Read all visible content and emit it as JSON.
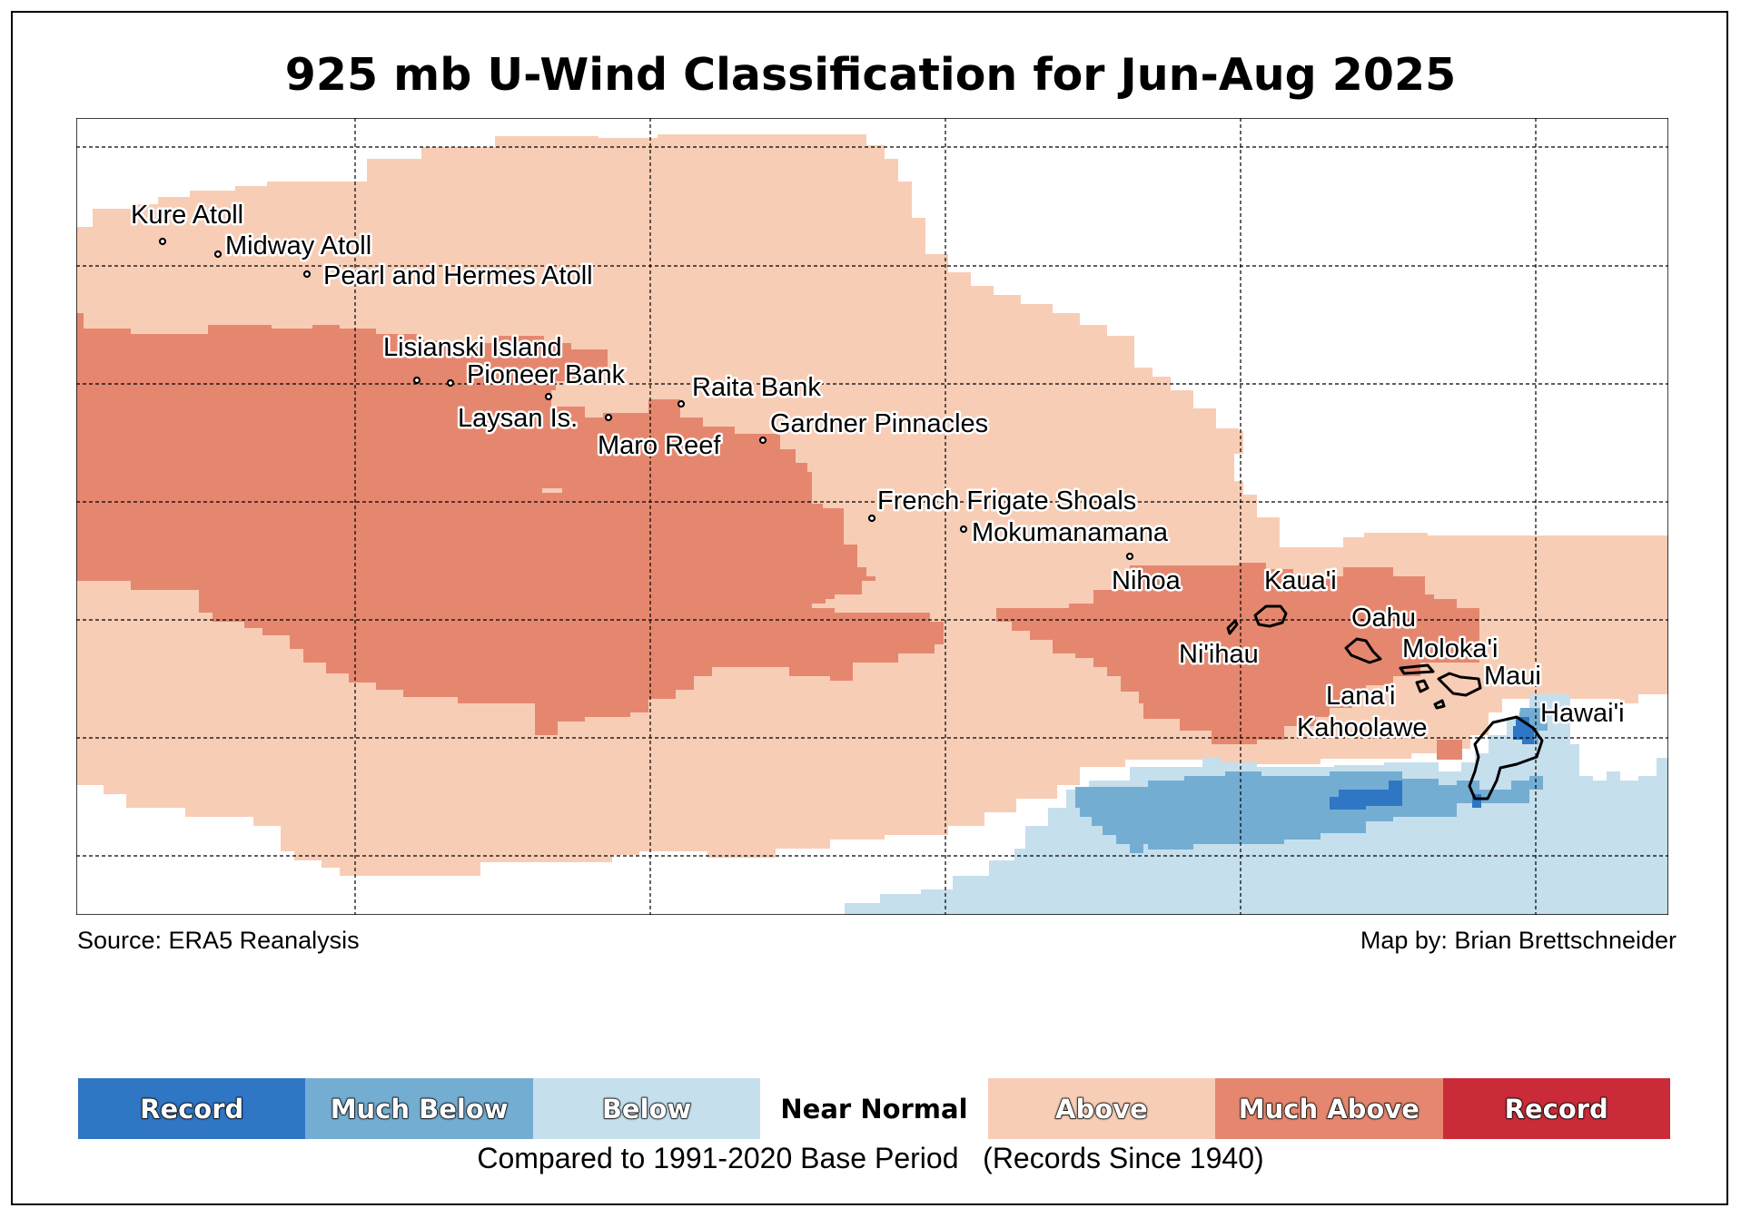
{
  "title": "925 mb U-Wind Classification for Jun-Aug 2025",
  "source": "Source: ERA5 Reanalysis",
  "credit": "Map by: Brian Brettschneider",
  "baseline_note": "Compared to 1991-2020 Base Period   (Records Since 1940)",
  "legend": [
    {
      "label": "Record",
      "color": "#2f76c4"
    },
    {
      "label": "Much Below",
      "color": "#74add2"
    },
    {
      "label": "Below",
      "color": "#c6dfed"
    },
    {
      "label": "Near Normal",
      "color": "#ffffff"
    },
    {
      "label": "Above",
      "color": "#f8cdb6"
    },
    {
      "label": "Much Above",
      "color": "#e5876f"
    },
    {
      "label": "Record",
      "color": "#cb2b38"
    }
  ],
  "places": {
    "kure": "Kure Atoll",
    "midway": "Midway Atoll",
    "pearl_hermes": "Pearl and Hermes Atoll",
    "lisianski": "Lisianski Island",
    "pioneer": "Pioneer Bank",
    "laysan": "Laysan Is.",
    "raita": "Raita Bank",
    "maro": "Maro Reef",
    "gardner": "Gardner Pinnacles",
    "ffs": "French Frigate Shoals",
    "mokumanamana": "Mokumanamana",
    "nihoa": "Nihoa",
    "kauai": "Kaua'i",
    "niihau": "Ni'ihau",
    "oahu": "Oahu",
    "molokai": "Moloka'i",
    "maui": "Maui",
    "lanai": "Lana'i",
    "kahoolawe": "Kahoolawe",
    "hawaii": "Hawai'i"
  }
}
